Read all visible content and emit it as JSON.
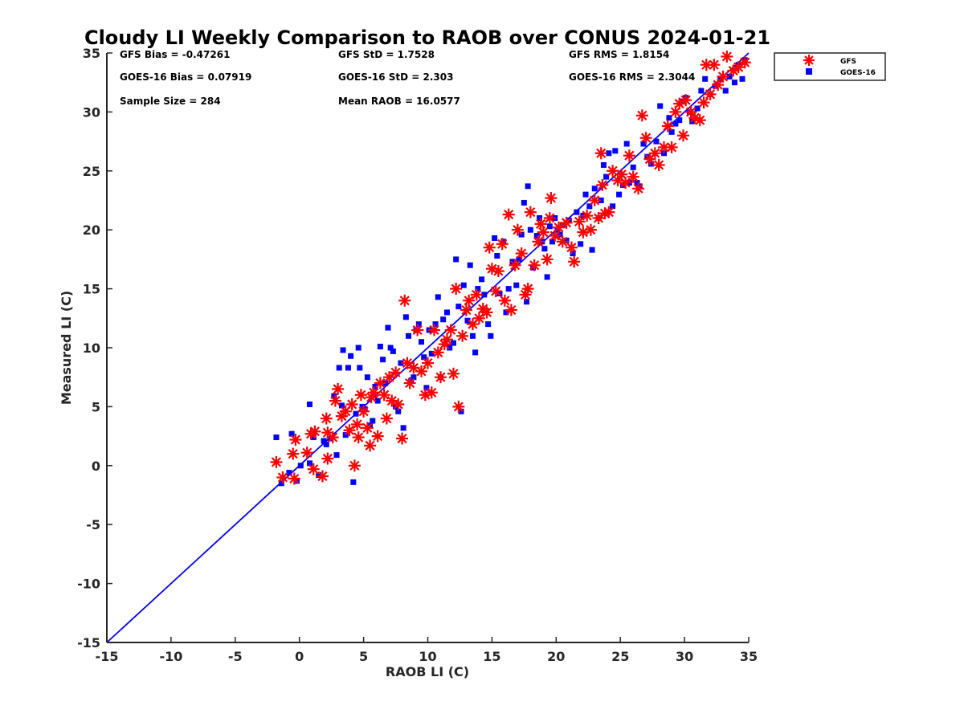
{
  "colors": {
    "gfs": "#ff0000",
    "goes16": "#0000ff",
    "reference_line": "#0000ff",
    "axes": "#262626",
    "background": "#ffffff"
  },
  "stats": {
    "gfs_bias": "GFS Bias = -0.47261",
    "goes_bias": "GOES-16 Bias = 0.07919",
    "sample_size": "Sample Size = 284",
    "gfs_std": "GFS StD = 1.7528",
    "goes_std": "GOES-16 StD = 2.303",
    "mean_raob": "Mean RAOB = 16.0577",
    "gfs_rms": "GFS RMS = 1.8154",
    "goes_rms": "GOES-16 RMS = 2.3044"
  },
  "chart_data": {
    "type": "scatter",
    "title": "Cloudy LI Weekly Comparison to RAOB over CONUS 2024-01-21",
    "xlabel": "RAOB LI (C)",
    "ylabel": "Measured LI (C)",
    "xlim": [
      -15,
      35
    ],
    "ylim": [
      -15,
      35
    ],
    "xticks": [
      "-15",
      "-10",
      "-5",
      "0",
      "5",
      "10",
      "15",
      "20",
      "25",
      "30",
      "35"
    ],
    "yticks": [
      "-15",
      "-10",
      "-5",
      "0",
      "5",
      "10",
      "15",
      "20",
      "25",
      "30",
      "35"
    ],
    "grid": false,
    "legend_position": "outside-top-right",
    "reference_line": [
      [
        -15,
        -15
      ],
      [
        35,
        35
      ]
    ],
    "series": [
      {
        "name": "GFS",
        "marker": "asterisk",
        "points": [
          [
            -1.8,
            0.3
          ],
          [
            -1.3,
            -1.0
          ],
          [
            -0.5,
            1.0
          ],
          [
            -0.3,
            2.2
          ],
          [
            -0.4,
            -1.1
          ],
          [
            0.6,
            1.1
          ],
          [
            0.9,
            2.7
          ],
          [
            1.2,
            2.9
          ],
          [
            1.1,
            -0.3
          ],
          [
            1.8,
            -0.9
          ],
          [
            2.1,
            4.0
          ],
          [
            2.2,
            2.8
          ],
          [
            2.2,
            0.6
          ],
          [
            2.6,
            2.4
          ],
          [
            2.8,
            5.5
          ],
          [
            3.0,
            6.5
          ],
          [
            3.3,
            4.2
          ],
          [
            3.6,
            4.6
          ],
          [
            3.9,
            3.0
          ],
          [
            4.1,
            5.2
          ],
          [
            4.3,
            0.0
          ],
          [
            4.5,
            3.5
          ],
          [
            4.6,
            2.4
          ],
          [
            4.8,
            6.0
          ],
          [
            5.0,
            4.6
          ],
          [
            5.3,
            3.2
          ],
          [
            5.5,
            1.7
          ],
          [
            5.6,
            5.8
          ],
          [
            5.8,
            6.2
          ],
          [
            6.1,
            2.5
          ],
          [
            6.3,
            7.0
          ],
          [
            6.6,
            6.0
          ],
          [
            6.8,
            4.0
          ],
          [
            7.0,
            7.5
          ],
          [
            7.2,
            5.5
          ],
          [
            7.5,
            7.9
          ],
          [
            7.7,
            5.2
          ],
          [
            8.0,
            2.3
          ],
          [
            8.2,
            14.0
          ],
          [
            8.4,
            8.7
          ],
          [
            8.6,
            7.0
          ],
          [
            8.9,
            8.3
          ],
          [
            9.2,
            11.5
          ],
          [
            9.5,
            8.0
          ],
          [
            9.8,
            6.0
          ],
          [
            10.0,
            8.7
          ],
          [
            10.3,
            6.2
          ],
          [
            10.5,
            11.5
          ],
          [
            10.8,
            9.6
          ],
          [
            11.0,
            7.5
          ],
          [
            11.3,
            10.3
          ],
          [
            11.5,
            10.7
          ],
          [
            11.8,
            11.5
          ],
          [
            12.0,
            7.8
          ],
          [
            12.2,
            15.0
          ],
          [
            12.4,
            5.0
          ],
          [
            12.7,
            11.0
          ],
          [
            13.0,
            13.2
          ],
          [
            13.2,
            14.0
          ],
          [
            13.5,
            12.0
          ],
          [
            13.8,
            14.5
          ],
          [
            14.0,
            12.5
          ],
          [
            14.3,
            13.3
          ],
          [
            14.6,
            13.0
          ],
          [
            14.8,
            18.5
          ],
          [
            15.0,
            16.7
          ],
          [
            15.3,
            14.8
          ],
          [
            15.5,
            16.5
          ],
          [
            15.8,
            18.8
          ],
          [
            16.0,
            14.0
          ],
          [
            16.3,
            21.3
          ],
          [
            16.5,
            13.2
          ],
          [
            16.8,
            17.0
          ],
          [
            17.0,
            20.0
          ],
          [
            17.3,
            18.0
          ],
          [
            17.6,
            14.5
          ],
          [
            17.8,
            15.0
          ],
          [
            18.0,
            21.5
          ],
          [
            18.3,
            17.0
          ],
          [
            18.6,
            19.0
          ],
          [
            18.8,
            20.5
          ],
          [
            19.0,
            19.8
          ],
          [
            19.3,
            17.5
          ],
          [
            19.5,
            21.0
          ],
          [
            19.6,
            22.7
          ],
          [
            19.9,
            19.5
          ],
          [
            20.2,
            20.2
          ],
          [
            20.5,
            19.0
          ],
          [
            20.8,
            20.6
          ],
          [
            21.2,
            18.5
          ],
          [
            21.4,
            17.3
          ],
          [
            21.8,
            20.7
          ],
          [
            22.1,
            19.8
          ],
          [
            22.4,
            21.2
          ],
          [
            22.7,
            20.0
          ],
          [
            23.0,
            22.5
          ],
          [
            23.3,
            21.0
          ],
          [
            23.5,
            26.5
          ],
          [
            23.6,
            23.8
          ],
          [
            23.8,
            21.4
          ],
          [
            24.1,
            21.5
          ],
          [
            24.4,
            25.0
          ],
          [
            24.8,
            24.2
          ],
          [
            25.1,
            24.7
          ],
          [
            25.4,
            24.0
          ],
          [
            25.7,
            26.3
          ],
          [
            26.0,
            24.5
          ],
          [
            26.4,
            23.5
          ],
          [
            26.7,
            29.7
          ],
          [
            27.0,
            27.8
          ],
          [
            27.3,
            26.0
          ],
          [
            27.7,
            26.5
          ],
          [
            28.0,
            25.5
          ],
          [
            28.4,
            27.0
          ],
          [
            28.7,
            28.8
          ],
          [
            29.0,
            27.0
          ],
          [
            29.3,
            30.0
          ],
          [
            29.6,
            30.7
          ],
          [
            29.9,
            28.0
          ],
          [
            30.1,
            31.0
          ],
          [
            30.5,
            30.0
          ],
          [
            30.8,
            29.5
          ],
          [
            31.2,
            29.3
          ],
          [
            31.5,
            30.8
          ],
          [
            31.7,
            34.0
          ],
          [
            32.0,
            31.5
          ],
          [
            32.3,
            34.0
          ],
          [
            32.6,
            32.3
          ],
          [
            33.0,
            33.0
          ],
          [
            33.3,
            34.7
          ],
          [
            33.8,
            33.5
          ],
          [
            34.2,
            33.8
          ],
          [
            34.7,
            34.2
          ]
        ]
      },
      {
        "name": "GOES-16",
        "marker": "square",
        "points": [
          [
            -1.8,
            2.4
          ],
          [
            -1.4,
            -1.5
          ],
          [
            -0.8,
            -0.6
          ],
          [
            -0.6,
            2.7
          ],
          [
            -0.2,
            -1.3
          ],
          [
            0.1,
            0.0
          ],
          [
            0.8,
            0.2
          ],
          [
            0.8,
            5.2
          ],
          [
            1.1,
            2.4
          ],
          [
            1.5,
            -0.8
          ],
          [
            1.9,
            2.1
          ],
          [
            2.1,
            1.8
          ],
          [
            2.4,
            2.3
          ],
          [
            2.7,
            5.9
          ],
          [
            2.9,
            0.9
          ],
          [
            3.1,
            8.3
          ],
          [
            3.3,
            5.1
          ],
          [
            3.4,
            9.8
          ],
          [
            3.6,
            2.6
          ],
          [
            3.8,
            8.3
          ],
          [
            4.0,
            9.3
          ],
          [
            4.2,
            -1.4
          ],
          [
            4.4,
            4.4
          ],
          [
            4.6,
            10.0
          ],
          [
            4.7,
            8.3
          ],
          [
            4.9,
            5.0
          ],
          [
            5.1,
            4.8
          ],
          [
            5.3,
            7.5
          ],
          [
            5.5,
            3.4
          ],
          [
            5.7,
            3.8
          ],
          [
            5.9,
            6.7
          ],
          [
            6.1,
            5.5
          ],
          [
            6.3,
            10.1
          ],
          [
            6.5,
            9.0
          ],
          [
            6.7,
            7.0
          ],
          [
            6.9,
            11.7
          ],
          [
            7.1,
            10.0
          ],
          [
            7.3,
            9.7
          ],
          [
            7.5,
            5.0
          ],
          [
            7.7,
            4.6
          ],
          [
            7.9,
            8.7
          ],
          [
            8.1,
            3.2
          ],
          [
            8.3,
            12.6
          ],
          [
            8.5,
            11.0
          ],
          [
            8.7,
            7.2
          ],
          [
            8.9,
            7.5
          ],
          [
            9.1,
            11.5
          ],
          [
            9.3,
            12.0
          ],
          [
            9.5,
            10.5
          ],
          [
            9.7,
            9.2
          ],
          [
            9.9,
            6.6
          ],
          [
            10.1,
            11.5
          ],
          [
            10.3,
            9.5
          ],
          [
            10.6,
            12.0
          ],
          [
            10.8,
            14.3
          ],
          [
            11.0,
            7.5
          ],
          [
            11.2,
            12.4
          ],
          [
            11.5,
            13.0
          ],
          [
            11.7,
            10.0
          ],
          [
            12.0,
            10.4
          ],
          [
            12.2,
            17.5
          ],
          [
            12.4,
            13.5
          ],
          [
            12.6,
            4.6
          ],
          [
            12.8,
            15.3
          ],
          [
            13.1,
            12.3
          ],
          [
            13.3,
            17.0
          ],
          [
            13.5,
            11.0
          ],
          [
            13.7,
            9.6
          ],
          [
            13.9,
            15.0
          ],
          [
            14.2,
            15.8
          ],
          [
            14.4,
            14.5
          ],
          [
            14.7,
            12.0
          ],
          [
            14.9,
            11.0
          ],
          [
            15.2,
            19.3
          ],
          [
            15.4,
            17.8
          ],
          [
            15.6,
            14.6
          ],
          [
            15.9,
            19.0
          ],
          [
            16.1,
            13.0
          ],
          [
            16.3,
            15.0
          ],
          [
            16.6,
            17.3
          ],
          [
            16.9,
            15.3
          ],
          [
            17.1,
            17.5
          ],
          [
            17.3,
            19.6
          ],
          [
            17.5,
            22.3
          ],
          [
            17.7,
            13.9
          ],
          [
            17.8,
            23.7
          ],
          [
            18.0,
            20.0
          ],
          [
            18.2,
            16.8
          ],
          [
            18.5,
            19.5
          ],
          [
            18.7,
            21.0
          ],
          [
            18.9,
            19.0
          ],
          [
            19.1,
            18.4
          ],
          [
            19.3,
            16.0
          ],
          [
            19.5,
            20.3
          ],
          [
            19.7,
            19.0
          ],
          [
            19.9,
            21.0
          ],
          [
            20.1,
            20.0
          ],
          [
            20.3,
            19.6
          ],
          [
            20.5,
            20.4
          ],
          [
            20.8,
            19.1
          ],
          [
            21.0,
            20.8
          ],
          [
            21.3,
            18.0
          ],
          [
            21.6,
            21.5
          ],
          [
            21.9,
            18.8
          ],
          [
            22.1,
            21.2
          ],
          [
            22.3,
            23.0
          ],
          [
            22.6,
            22.0
          ],
          [
            22.8,
            18.3
          ],
          [
            23.0,
            23.5
          ],
          [
            23.3,
            21.0
          ],
          [
            23.5,
            22.5
          ],
          [
            23.7,
            25.5
          ],
          [
            23.9,
            24.5
          ],
          [
            24.1,
            26.5
          ],
          [
            24.4,
            22.0
          ],
          [
            24.6,
            26.7
          ],
          [
            24.9,
            23.0
          ],
          [
            25.2,
            23.8
          ],
          [
            25.5,
            27.3
          ],
          [
            25.7,
            24.0
          ],
          [
            26.0,
            25.3
          ],
          [
            26.3,
            24.0
          ],
          [
            26.5,
            23.7
          ],
          [
            26.8,
            27.3
          ],
          [
            27.1,
            26.2
          ],
          [
            27.4,
            25.6
          ],
          [
            27.8,
            27.5
          ],
          [
            28.1,
            30.5
          ],
          [
            28.4,
            26.5
          ],
          [
            28.8,
            29.5
          ],
          [
            29.0,
            28.3
          ],
          [
            29.3,
            29.0
          ],
          [
            29.6,
            29.3
          ],
          [
            29.8,
            30.9
          ],
          [
            30.1,
            31.2
          ],
          [
            30.4,
            30.0
          ],
          [
            30.6,
            29.2
          ],
          [
            31.0,
            30.3
          ],
          [
            31.3,
            31.8
          ],
          [
            31.6,
            32.8
          ],
          [
            32.0,
            31.5
          ],
          [
            32.4,
            32.2
          ],
          [
            32.8,
            32.8
          ],
          [
            33.2,
            31.8
          ],
          [
            33.5,
            33.0
          ],
          [
            33.9,
            32.5
          ],
          [
            34.2,
            34.0
          ],
          [
            34.5,
            32.8
          ],
          [
            34.7,
            34.4
          ]
        ]
      }
    ]
  }
}
